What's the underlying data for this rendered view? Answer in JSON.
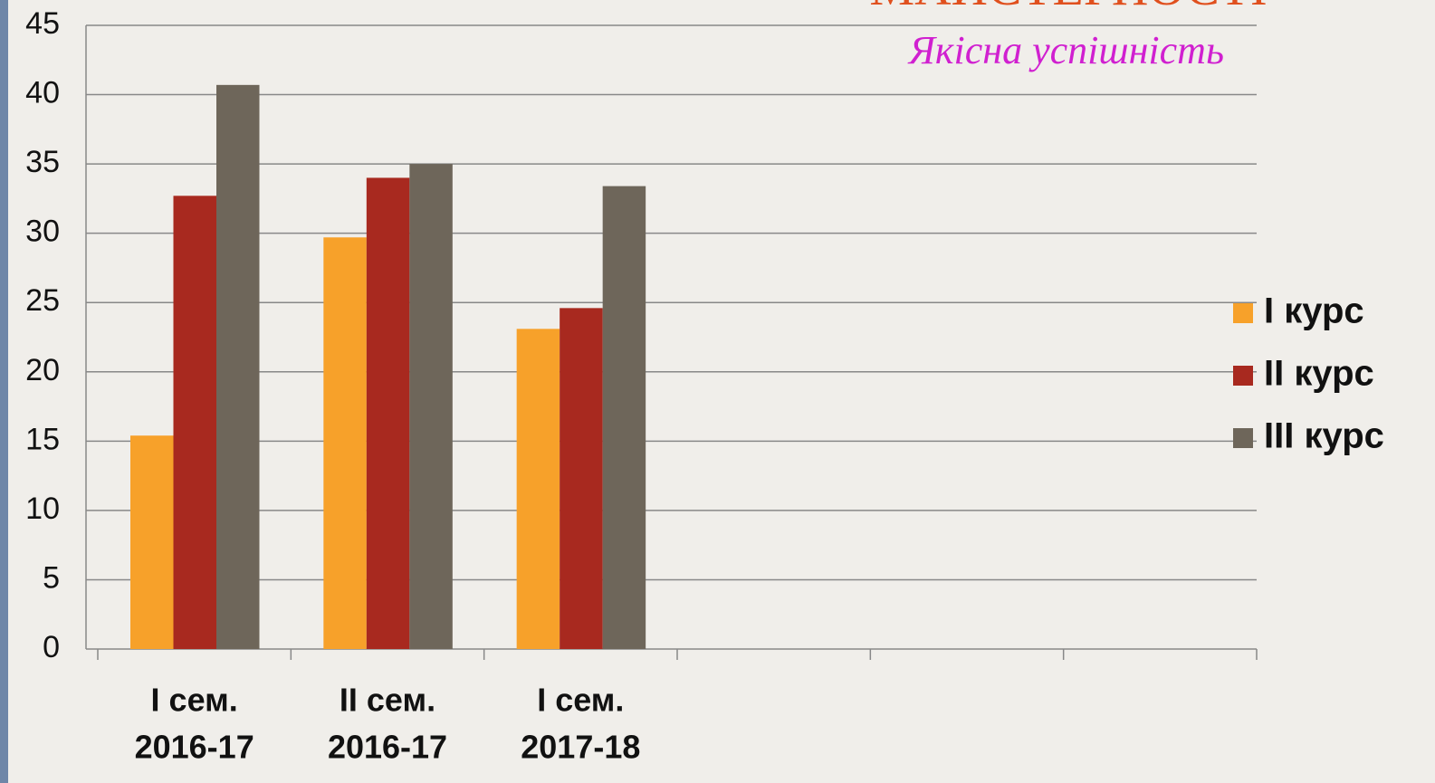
{
  "chart_data": {
    "type": "bar",
    "title": "МАЙСТЕРНОСТІ",
    "subtitle": "Якісна успішність",
    "categories": [
      [
        "І сем.",
        "2016-17"
      ],
      [
        "ІІ сем.",
        "2016-17"
      ],
      [
        "І сем.",
        "2017-18"
      ],
      null,
      null,
      null
    ],
    "series": [
      {
        "name": "І курс",
        "color": "#f7a12a",
        "values": [
          15.4,
          29.7,
          23.1,
          null,
          null,
          null
        ]
      },
      {
        "name": "ІІ курс",
        "color": "#a8291f",
        "values": [
          32.7,
          34.0,
          24.6,
          null,
          null,
          null
        ]
      },
      {
        "name": "ІІІ курс",
        "color": "#6e665a",
        "values": [
          40.7,
          35.0,
          33.4,
          null,
          null,
          null
        ]
      }
    ],
    "ylim": [
      0,
      45
    ],
    "yticks": [
      0,
      5,
      10,
      15,
      20,
      25,
      30,
      35,
      40,
      45
    ],
    "grid": true,
    "legend": "right"
  }
}
